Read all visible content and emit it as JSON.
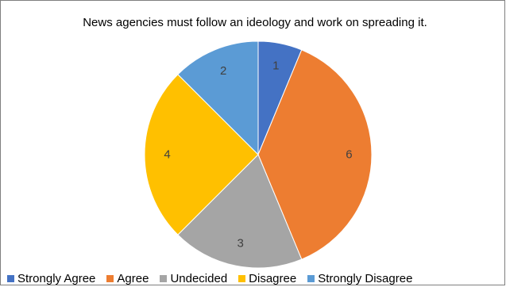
{
  "chart_data": {
    "type": "pie",
    "title": "News agencies must follow an ideology and work on spreading it.",
    "categories": [
      "Strongly Agree",
      "Agree",
      "Undecided",
      "Disagree",
      "Strongly Disagree"
    ],
    "values": [
      1,
      6,
      3,
      4,
      2
    ],
    "colors": [
      "#4472c4",
      "#ed7d31",
      "#a5a5a5",
      "#ffc000",
      "#5b9bd5"
    ],
    "legend": "bottom",
    "data_labels": true
  }
}
